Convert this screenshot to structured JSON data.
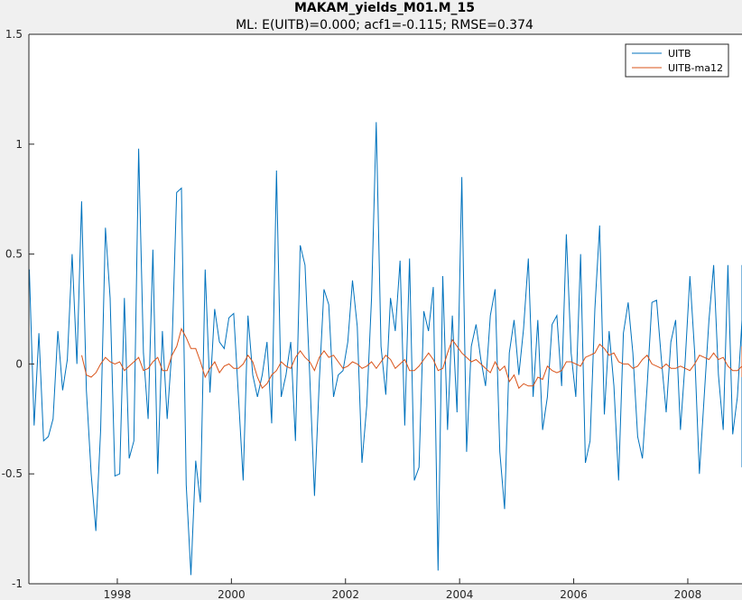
{
  "chart_data": {
    "type": "line",
    "title": "MAKAM_yields_M01.M_15",
    "subtitle": "ML: E(UITB)=0.000; acf1=-0.115; RMSE=0.374",
    "xlabel": "",
    "ylabel": "",
    "xlim": [
      1996.45,
      2008.95
    ],
    "ylim": [
      -1,
      1.5
    ],
    "x_ticks": [
      1998,
      2000,
      2002,
      2004,
      2006,
      2008
    ],
    "x_tick_labels": [
      "1998",
      "2000",
      "2002",
      "2004",
      "2006",
      "2008"
    ],
    "y_ticks": [
      -1,
      -0.5,
      0,
      0.5,
      1,
      1.5
    ],
    "y_tick_labels": [
      "-1",
      "-0.5",
      "0",
      "0.5",
      "1",
      "1.5"
    ],
    "grid": false,
    "legend_position": "top-right",
    "x_start": 1996.4583,
    "x_step": 0.0833,
    "series": [
      {
        "name": "UITB",
        "color": "#0072bd",
        "values": [
          0.43,
          -0.28,
          0.14,
          -0.35,
          -0.33,
          -0.25,
          0.15,
          -0.12,
          0.02,
          0.5,
          0.0,
          0.74,
          -0.12,
          -0.5,
          -0.76,
          -0.3,
          0.62,
          0.3,
          -0.51,
          -0.5,
          0.3,
          -0.43,
          -0.35,
          0.98,
          0.05,
          -0.25,
          0.52,
          -0.5,
          0.15,
          -0.25,
          0.07,
          0.78,
          0.8,
          -0.55,
          -0.96,
          -0.44,
          -0.63,
          0.43,
          -0.13,
          0.25,
          0.1,
          0.07,
          0.21,
          0.23,
          -0.15,
          -0.53,
          0.22,
          -0.05,
          -0.15,
          -0.05,
          0.1,
          -0.27,
          0.88,
          -0.15,
          -0.05,
          0.1,
          -0.35,
          0.54,
          0.45,
          -0.05,
          -0.6,
          -0.08,
          0.34,
          0.27,
          -0.15,
          -0.05,
          -0.03,
          0.1,
          0.38,
          0.17,
          -0.45,
          -0.19,
          0.3,
          1.1,
          0.08,
          -0.14,
          0.3,
          0.15,
          0.47,
          -0.28,
          0.48,
          -0.53,
          -0.47,
          0.24,
          0.15,
          0.35,
          -0.94,
          0.4,
          -0.3,
          0.22,
          -0.22,
          0.85,
          -0.4,
          0.08,
          0.18,
          0.02,
          -0.1,
          0.22,
          0.34,
          -0.4,
          -0.66,
          0.05,
          0.2,
          -0.05,
          0.16,
          0.48,
          -0.15,
          0.2,
          -0.3,
          -0.15,
          0.18,
          0.22,
          -0.1,
          0.59,
          0.05,
          -0.15,
          0.5,
          -0.45,
          -0.35,
          0.25,
          0.63,
          -0.23,
          0.15,
          -0.1,
          -0.53,
          0.14,
          0.28,
          0.05,
          -0.33,
          -0.43,
          -0.1,
          0.28,
          0.29,
          0.02,
          -0.22,
          0.1,
          0.2,
          -0.3,
          0.01,
          0.4,
          0.05,
          -0.5,
          -0.15,
          0.2,
          0.45,
          -0.05,
          -0.3,
          0.45,
          -0.32,
          -0.15,
          0.2,
          -0.47,
          0.45,
          -0.04,
          0.02
        ]
      },
      {
        "name": "UITB-ma12",
        "color": "#d95319",
        "x_start": 1997.375,
        "values": [
          0.04,
          -0.05,
          -0.06,
          -0.04,
          0.0,
          0.03,
          0.01,
          0.0,
          0.01,
          -0.03,
          -0.01,
          0.01,
          0.03,
          -0.03,
          -0.02,
          0.01,
          0.03,
          -0.03,
          -0.03,
          0.04,
          0.08,
          0.16,
          0.12,
          0.07,
          0.07,
          0.01,
          -0.06,
          -0.02,
          0.01,
          -0.04,
          -0.01,
          0.0,
          -0.02,
          -0.02,
          0.0,
          0.04,
          0.01,
          -0.06,
          -0.11,
          -0.09,
          -0.05,
          -0.03,
          0.01,
          -0.01,
          -0.02,
          0.03,
          0.06,
          0.03,
          0.01,
          -0.03,
          0.03,
          0.06,
          0.03,
          0.04,
          0.01,
          -0.02,
          -0.01,
          0.01,
          0.0,
          -0.02,
          -0.01,
          0.01,
          -0.02,
          0.01,
          0.04,
          0.02,
          -0.02,
          0.0,
          0.02,
          -0.03,
          -0.03,
          -0.01,
          0.02,
          0.05,
          0.02,
          -0.03,
          -0.02,
          0.05,
          0.11,
          0.08,
          0.05,
          0.03,
          0.01,
          0.02,
          0.0,
          -0.02,
          -0.04,
          0.01,
          -0.03,
          -0.01,
          -0.08,
          -0.05,
          -0.11,
          -0.09,
          -0.1,
          -0.1,
          -0.06,
          -0.07,
          -0.01,
          -0.03,
          -0.04,
          -0.03,
          0.01,
          0.01,
          0.0,
          -0.01,
          0.03,
          0.04,
          0.05,
          0.09,
          0.07,
          0.04,
          0.05,
          0.01,
          0.0,
          0.0,
          -0.02,
          -0.01,
          0.02,
          0.04,
          0.0,
          -0.01,
          -0.02,
          0.0,
          -0.02,
          -0.02,
          -0.01,
          -0.02,
          -0.03,
          0.0,
          0.04,
          0.03,
          0.02,
          0.05,
          0.02,
          0.03,
          -0.01,
          -0.03,
          -0.03,
          -0.01,
          0.03,
          0.05,
          0.0,
          -0.05,
          -0.06,
          -0.05,
          -0.03,
          -0.05,
          -0.01,
          0.03,
          0.05,
          0.02,
          0.01,
          0.06,
          0.03,
          0.0,
          0.03,
          0.0,
          0.07,
          0.05,
          0.04,
          0.01,
          0.01,
          0.0,
          0.03,
          0.08,
          0.06,
          0.0,
          0.03,
          0.05,
          0.04,
          0.02,
          0.01,
          -0.02,
          -0.02,
          0.02,
          0.03,
          0.04,
          0.01,
          -0.01,
          -0.02,
          -0.03,
          -0.03,
          -0.01,
          0.02
        ]
      }
    ]
  }
}
